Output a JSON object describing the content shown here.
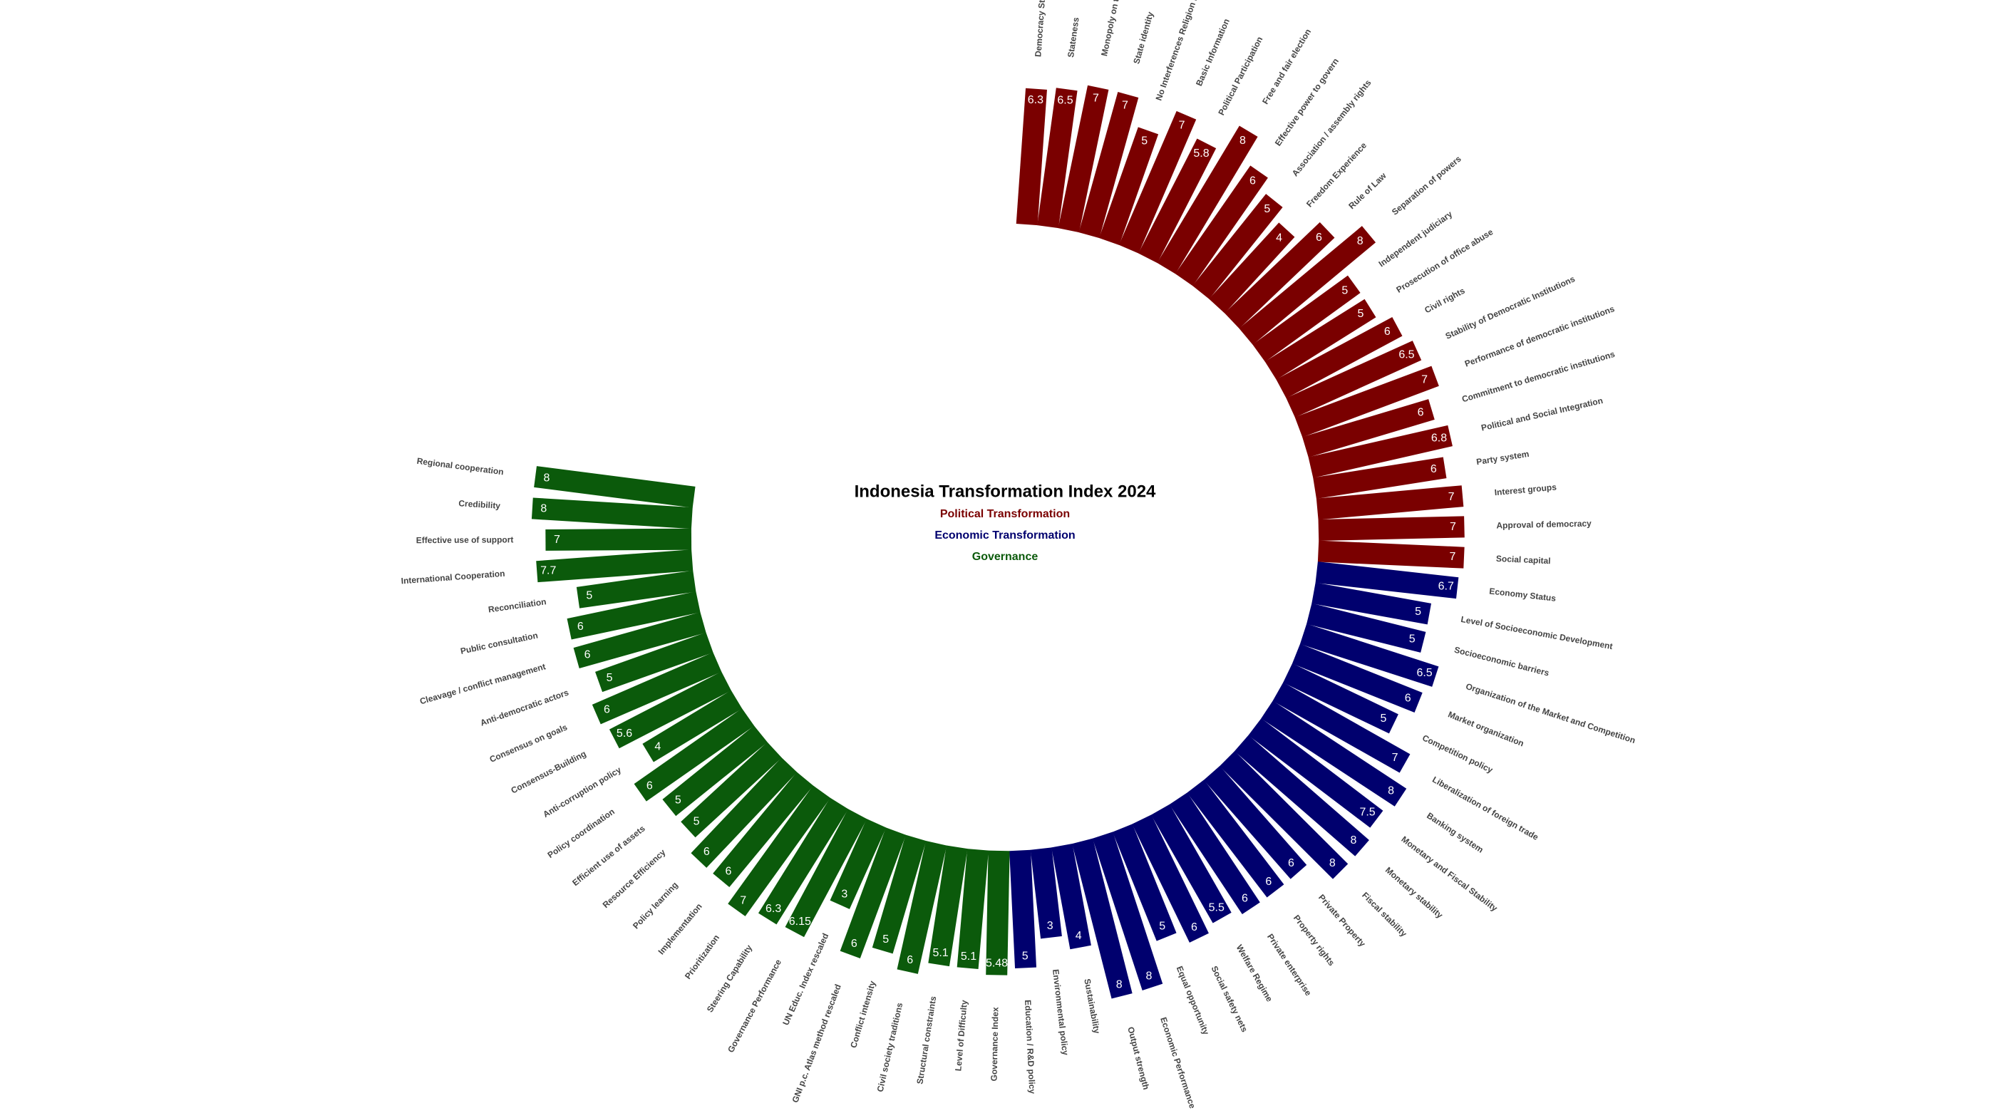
{
  "chart_data": {
    "type": "radial_bar",
    "title": "Indonesia Transformation Index 2024",
    "series": [
      {
        "name": "Political Transformation",
        "color": "#7a0000",
        "categories": [
          "Democracy Status",
          "Stateness",
          "Monopoly on the use of force",
          "State identity",
          "No Interferences Religion Dogma",
          "Basic Information",
          "Political Participation",
          "Free and fair election",
          "Effective power to govern",
          "Association / assembly rights",
          "Freedom Experience",
          "Rule of Law",
          "Separation of powers",
          "Independent judiciary",
          "Prosecution of office abuse",
          "Civil rights",
          "Stability of Democratic Institutions",
          "Performance of democratic institutions",
          "Commitment to democratic institutions",
          "Political and Social Integration",
          "Party system",
          "Interest groups",
          "Approval of democracy",
          "Social capital"
        ],
        "values": [
          6.3,
          6.5,
          7,
          7,
          5,
          7,
          5.8,
          8,
          6,
          5,
          4,
          6,
          8,
          5,
          5,
          6,
          6.5,
          7,
          6,
          6.8,
          6,
          7,
          7,
          7
        ]
      },
      {
        "name": "Economic Transformation",
        "color": "#00006e",
        "categories": [
          "Economy Status",
          "Level of Socioeconomic Development",
          "Socioeconomic barriers",
          "Organization of the Market and Competition",
          "Market organization",
          "Competition policy",
          "Liberalization of foreign trade",
          "Banking system",
          "Monetary and Fiscal Stability",
          "Monetary stability",
          "Fiscal stability",
          "Private Property",
          "Property rights",
          "Private enterprise",
          "Welfare Regime",
          "Social safety nets",
          "Equal opportunity",
          "Economic Performance",
          "Output strength",
          "Sustainability",
          "Environmental policy",
          "Education / R&D policy"
        ],
        "values": [
          6.7,
          5,
          5,
          6.5,
          6,
          5,
          7,
          8,
          7.5,
          8,
          8,
          6,
          6,
          6,
          5.5,
          6,
          5,
          8,
          8,
          4,
          3,
          5
        ]
      },
      {
        "name": "Governance",
        "color": "#0b5a0b",
        "categories": [
          "Governance Index",
          "Level of Difficulty",
          "Structural constraints",
          "Civil society traditions",
          "Conflict intensity",
          "GNI p.c. Atlas method rescaled",
          "UN Educ. Index rescaled",
          "Governance Performance",
          "Steering Capability",
          "Prioritization",
          "Implementation",
          "Policy learning",
          "Resource Efficiency",
          "Efficient use of assets",
          "Policy coordination",
          "Anti-corruption policy",
          "Consensus-Building",
          "Consensus on goals",
          "Anti-democratic actors",
          "Cleavage / conflict management",
          "Public consultation",
          "Reconciliation",
          "International Cooperation",
          "Effective use of support",
          "Credibility",
          "Regional cooperation"
        ],
        "values": [
          5.48,
          5.1,
          5.1,
          6,
          5,
          6,
          3,
          6.15,
          6.3,
          7,
          6,
          6,
          5,
          5,
          6,
          4,
          5.6,
          6,
          5,
          6,
          6,
          5,
          7.7,
          7,
          8,
          8
        ]
      }
    ]
  }
}
